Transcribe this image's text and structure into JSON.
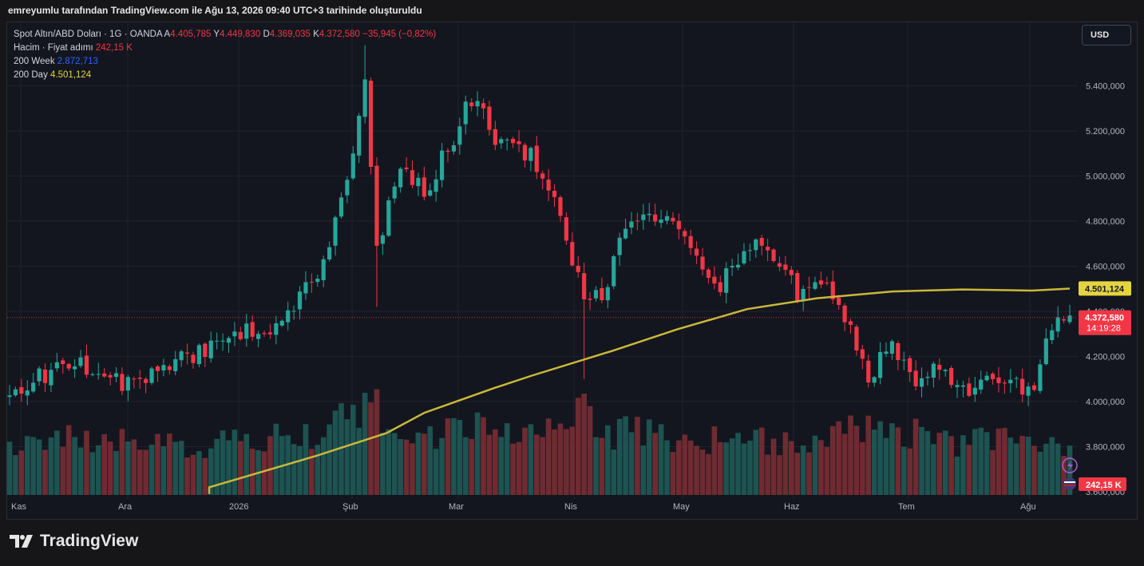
{
  "header": {
    "snapshot_text": "emreyumlu tarafından TradingView.com ile Ağu 13, 2026 09:40 UTC+3 tarihinde oluşturuldu"
  },
  "legend": {
    "symbol": "Spot Altın/ABD Doları · 1G · OANDA",
    "o_label": "A",
    "o_value": "4.405,785",
    "h_label": "Y",
    "h_value": "4.449,830",
    "l_label": "D",
    "l_value": "4.369,035",
    "c_label": "K",
    "c_value": "4.372,580",
    "change": "−35,945 (−0,82%)",
    "volume_label": "Hacim · Fiyat adımı",
    "volume_value": "242,15 K",
    "ma_week_label": "200 Week",
    "ma_week_value": "2.872,713",
    "ma_day_label": "200 Day",
    "ma_day_value": "4.501,124"
  },
  "currency_button": "USD",
  "brand": {
    "name": "TradingView"
  },
  "colors": {
    "up": "#26a69a",
    "down": "#f23645",
    "ma_day": "#c9b83a",
    "background": "#13161f",
    "grid": "#20232c"
  },
  "chart_data": {
    "type": "candlestick",
    "x_ticks": [
      "Kas",
      "Ara",
      "2026",
      "Şub",
      "Mar",
      "Nis",
      "May",
      "Haz",
      "Tem",
      "Ağu"
    ],
    "y_ticks": [
      "5.400,000",
      "5.200,000",
      "5.000,000",
      "4.800,000",
      "4.600,000",
      "4.400,000",
      "4.200,000",
      "4.000,000",
      "3.800,000",
      "3.600,000"
    ],
    "y_tick_values": [
      5400,
      5200,
      5000,
      4800,
      4600,
      4400,
      4200,
      4000,
      3800,
      3600
    ],
    "ylim": [
      3600,
      5800
    ],
    "price_labels": {
      "ma_day": "4.501,124",
      "ma_day_value": 4501.124,
      "last": "4.372,580",
      "last_value": 4372.58,
      "countdown": "14:19:28",
      "volume": "242,15 K"
    },
    "ma_day_points": [
      [
        -1,
        3590
      ],
      [
        0,
        3620
      ],
      [
        20,
        3760
      ],
      [
        33,
        3860
      ],
      [
        40,
        3950
      ],
      [
        53,
        4060
      ],
      [
        60,
        4115
      ],
      [
        75,
        4225
      ],
      [
        87,
        4320
      ],
      [
        100,
        4410
      ],
      [
        113,
        4458
      ],
      [
        127,
        4488
      ],
      [
        140,
        4497
      ],
      [
        153,
        4492
      ],
      [
        160,
        4501
      ]
    ],
    "anchors": [
      [
        0,
        4020,
        0.5
      ],
      [
        10,
        4190,
        0.6
      ],
      [
        20,
        4080,
        0.55
      ],
      [
        30,
        4200,
        0.5
      ],
      [
        40,
        4330,
        0.6
      ],
      [
        45,
        4330,
        0.7
      ],
      [
        53,
        4620,
        0.65
      ],
      [
        58,
        5060,
        0.9
      ],
      [
        60,
        5390,
        1.0
      ],
      [
        62,
        4680,
        0.9
      ],
      [
        66,
        5040,
        0.7
      ],
      [
        70,
        4920,
        0.6
      ],
      [
        74,
        5120,
        0.7
      ],
      [
        78,
        5350,
        0.8
      ],
      [
        83,
        5140,
        0.6
      ],
      [
        88,
        5080,
        0.65
      ],
      [
        93,
        4850,
        0.8
      ],
      [
        97,
        4430,
        0.95
      ],
      [
        100,
        4480,
        0.6
      ],
      [
        104,
        4760,
        0.7
      ],
      [
        110,
        4850,
        0.6
      ],
      [
        116,
        4620,
        0.55
      ],
      [
        120,
        4530,
        0.6
      ],
      [
        126,
        4740,
        0.6
      ],
      [
        130,
        4640,
        0.55
      ],
      [
        133,
        4480,
        0.6
      ],
      [
        138,
        4530,
        0.55
      ],
      [
        142,
        4330,
        0.7
      ],
      [
        145,
        4110,
        0.8
      ],
      [
        149,
        4280,
        0.6
      ],
      [
        153,
        4050,
        0.7
      ],
      [
        157,
        4170,
        0.6
      ],
      [
        162,
        4020,
        0.55
      ],
      [
        166,
        4090,
        0.6
      ],
      [
        170,
        4060,
        0.55
      ],
      [
        173,
        4080,
        0.6
      ],
      [
        175,
        4300,
        0.7
      ],
      [
        177,
        4400,
        0.6
      ],
      [
        179,
        4385,
        0.5
      ]
    ],
    "bar_count": 180
  }
}
